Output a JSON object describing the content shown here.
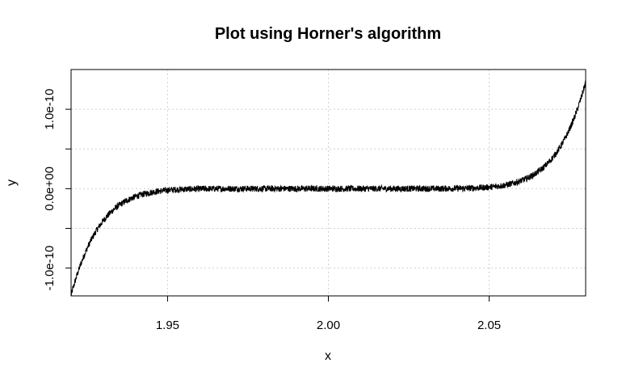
{
  "chart_data": {
    "type": "line",
    "title": "Plot using Horner's algorithm",
    "xlabel": "x",
    "ylabel": "y",
    "xlim": [
      1.92,
      2.08
    ],
    "ylim": [
      -1.35e-10,
      1.5e-10
    ],
    "x_ticks": [
      1.95,
      2.0,
      2.05
    ],
    "x_tick_labels": [
      "1.95",
      "2.00",
      "2.05"
    ],
    "y_ticks": [
      -1e-10,
      -5e-11,
      0,
      5e-11,
      1e-10
    ],
    "y_tick_labels": [
      "-1.0e-10",
      "",
      "0.0e+00",
      "",
      "1.0e-10"
    ],
    "grid": true,
    "grid_style": "dotted light gray",
    "line_color": "#000000",
    "series": [
      {
        "function": "(x-2)^9",
        "x_range": [
          1.92,
          2.08
        ],
        "noise_amplitude": 4e-12,
        "description_visible": "noisy curve, flat near 0 between ~1.95 and ~2.05, rising steeply to ~1.4e-10 at 2.08 and falling to ~-1.35e-10 at 1.92"
      }
    ]
  }
}
